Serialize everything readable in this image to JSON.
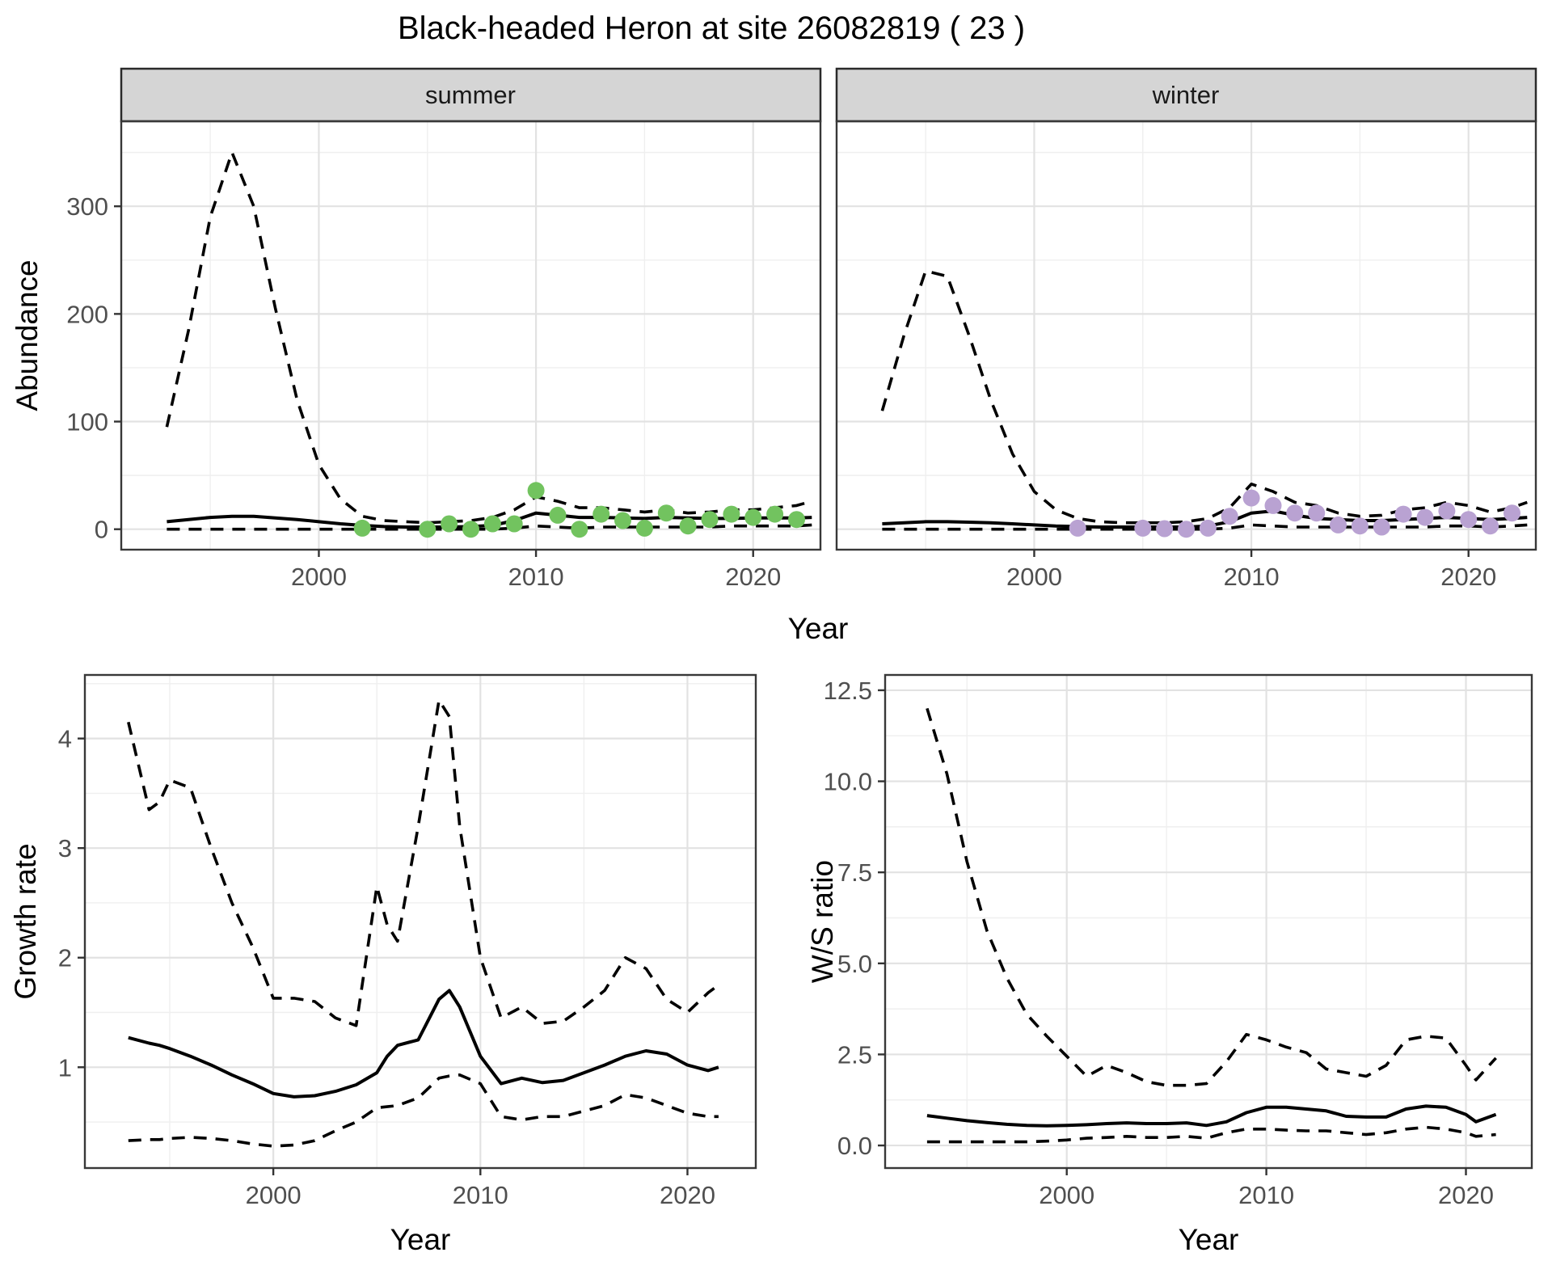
{
  "title": "Black-headed Heron at site 26082819 ( 23 )",
  "top_xlabel": "Year",
  "colors": {
    "summer_point": "#72c35f",
    "winter_point": "#b9a2d2",
    "line": "#000000",
    "strip_fill": "#d5d5d5",
    "panel_border": "#383838",
    "grid_major": "#e2e2e2",
    "grid_minor": "#efefef",
    "tick_text": "#4f4f4f"
  },
  "chart_data": [
    {
      "id": "summer",
      "type": "line",
      "facet_label": "summer",
      "ylabel": "Abundance",
      "xlim": [
        1990.9,
        2023.1
      ],
      "ylim": [
        -19,
        379
      ],
      "xticks": [
        2000,
        2010,
        2020
      ],
      "xtick_labels": [
        "2000",
        "2010",
        "2020"
      ],
      "xminor": [
        1995,
        2005,
        2015
      ],
      "yticks": [
        0,
        100,
        200,
        300
      ],
      "ytick_labels": [
        "0",
        "100",
        "200",
        "300"
      ],
      "yminor": [
        50,
        150,
        250,
        350
      ],
      "series": [
        {
          "name": "upper-ci",
          "style": "dashed",
          "x": [
            1993,
            1994,
            1995,
            1996,
            1997,
            1998,
            1999,
            2000,
            2001,
            2002,
            2003,
            2004,
            2005,
            2006,
            2007,
            2008,
            2009,
            2010,
            2011,
            2012,
            2013,
            2014,
            2015,
            2016,
            2017,
            2018,
            2019,
            2020,
            2021,
            2022,
            2022.7
          ],
          "y": [
            95,
            185,
            290,
            350,
            300,
            205,
            120,
            60,
            28,
            12,
            8,
            7,
            6,
            7,
            8,
            11,
            18,
            30,
            26,
            20,
            20,
            18,
            16,
            18,
            15,
            16,
            18,
            18,
            20,
            22,
            26
          ]
        },
        {
          "name": "lower-ci",
          "style": "dashed",
          "x": [
            1993,
            1994,
            1995,
            1996,
            1997,
            1998,
            1999,
            2000,
            2001,
            2002,
            2003,
            2004,
            2005,
            2006,
            2007,
            2008,
            2009,
            2010,
            2011,
            2012,
            2013,
            2014,
            2015,
            2016,
            2017,
            2018,
            2019,
            2020,
            2021,
            2022,
            2022.7
          ],
          "y": [
            0,
            0,
            0,
            0,
            0,
            0,
            0,
            0,
            0,
            0,
            0,
            0,
            0,
            0,
            0,
            0,
            1,
            3,
            2,
            1,
            2,
            2,
            2,
            2,
            2,
            2,
            3,
            3,
            3,
            3,
            4
          ]
        },
        {
          "name": "fit",
          "style": "solid",
          "x": [
            1993,
            1994,
            1995,
            1996,
            1997,
            1998,
            1999,
            2000,
            2001,
            2002,
            2003,
            2004,
            2005,
            2006,
            2007,
            2008,
            2009,
            2010,
            2011,
            2012,
            2013,
            2014,
            2015,
            2016,
            2017,
            2018,
            2019,
            2020,
            2021,
            2022,
            2022.7
          ],
          "y": [
            7,
            9,
            11,
            12,
            12,
            10.5,
            9,
            7,
            5,
            3.5,
            2.5,
            2,
            2,
            2,
            2.5,
            3.5,
            8,
            15,
            13,
            11,
            11,
            10.5,
            10,
            11,
            10.5,
            10,
            10,
            10.5,
            10.5,
            10.5,
            11
          ]
        }
      ],
      "points": {
        "name": "summer-observations",
        "color": "#72c35f",
        "x": [
          2002,
          2005,
          2006,
          2007,
          2008,
          2009,
          2010,
          2011,
          2012,
          2013,
          2014,
          2015,
          2016,
          2017,
          2018,
          2019,
          2020,
          2021,
          2022
        ],
        "y": [
          1,
          0,
          5,
          0,
          5,
          5,
          36,
          13,
          0,
          14,
          8,
          1,
          15,
          3,
          9,
          14,
          11,
          14,
          9
        ]
      }
    },
    {
      "id": "winter",
      "type": "line",
      "facet_label": "winter",
      "ylabel": null,
      "xlim": [
        1990.9,
        2023.1
      ],
      "ylim": [
        -19,
        379
      ],
      "xticks": [
        2000,
        2010,
        2020
      ],
      "xtick_labels": [
        "2000",
        "2010",
        "2020"
      ],
      "xminor": [
        1995,
        2005,
        2015
      ],
      "yticks": [
        0,
        100,
        200,
        300
      ],
      "ytick_labels": [],
      "yminor": [
        50,
        150,
        250,
        350
      ],
      "series": [
        {
          "name": "upper-ci",
          "style": "dashed",
          "x": [
            1993,
            1994,
            1995,
            1996,
            1997,
            1998,
            1999,
            2000,
            2001,
            2002,
            2003,
            2004,
            2005,
            2006,
            2007,
            2008,
            2009,
            2010,
            2011,
            2012,
            2013,
            2014,
            2015,
            2016,
            2017,
            2018,
            2019,
            2020,
            2021,
            2022,
            2022.7
          ],
          "y": [
            110,
            180,
            240,
            235,
            180,
            120,
            70,
            35,
            18,
            10,
            7,
            6,
            6,
            6,
            7,
            10,
            20,
            42,
            35,
            25,
            22,
            15,
            12,
            13,
            18,
            20,
            25,
            22,
            16,
            20,
            25
          ]
        },
        {
          "name": "lower-ci",
          "style": "dashed",
          "x": [
            1993,
            1994,
            1995,
            1996,
            1997,
            1998,
            1999,
            2000,
            2001,
            2002,
            2003,
            2004,
            2005,
            2006,
            2007,
            2008,
            2009,
            2010,
            2011,
            2012,
            2013,
            2014,
            2015,
            2016,
            2017,
            2018,
            2019,
            2020,
            2021,
            2022,
            2022.7
          ],
          "y": [
            0,
            0,
            0,
            0,
            0,
            0,
            0,
            0,
            0,
            0,
            0,
            0,
            0,
            0,
            0,
            0,
            1,
            4,
            3,
            2,
            2,
            2,
            2,
            2,
            2,
            2,
            3,
            3,
            2,
            3,
            4
          ]
        },
        {
          "name": "fit",
          "style": "solid",
          "x": [
            1993,
            1994,
            1995,
            1996,
            1997,
            1998,
            1999,
            2000,
            2001,
            2002,
            2003,
            2004,
            2005,
            2006,
            2007,
            2008,
            2009,
            2010,
            2011,
            2012,
            2013,
            2014,
            2015,
            2016,
            2017,
            2018,
            2019,
            2020,
            2021,
            2022,
            2022.7
          ],
          "y": [
            5,
            6,
            7,
            7,
            6.5,
            6,
            5,
            4,
            3,
            2.5,
            2,
            2,
            2,
            2,
            2,
            3,
            7,
            15,
            17,
            13,
            10,
            9,
            8,
            8,
            9,
            10,
            11,
            10,
            9,
            10,
            11
          ]
        }
      ],
      "points": {
        "name": "winter-observations",
        "color": "#b9a2d2",
        "x": [
          2002,
          2005,
          2006,
          2007,
          2008,
          2009,
          2010,
          2011,
          2012,
          2013,
          2014,
          2015,
          2016,
          2017,
          2018,
          2019,
          2020,
          2021,
          2022
        ],
        "y": [
          1,
          1,
          0.5,
          0,
          1,
          12,
          29,
          22,
          15,
          15,
          4,
          3,
          2,
          14,
          11,
          17,
          9,
          3,
          15
        ]
      }
    },
    {
      "id": "growth",
      "type": "line",
      "facet_label": null,
      "ylabel": "Growth rate",
      "xlabel": "Year",
      "xlim": [
        1990.9,
        2023.3
      ],
      "ylim": [
        0.08,
        4.58
      ],
      "xticks": [
        2000,
        2010,
        2020
      ],
      "xtick_labels": [
        "2000",
        "2010",
        "2020"
      ],
      "xminor": [
        1995,
        2005,
        2015
      ],
      "yticks": [
        1,
        2,
        3,
        4
      ],
      "ytick_labels": [
        "1",
        "2",
        "3",
        "4"
      ],
      "yminor": [
        0.5,
        1.5,
        2.5,
        3.5,
        4.5
      ],
      "series": [
        {
          "name": "upper-ci",
          "style": "dashed",
          "x": [
            1993,
            1994,
            1994.5,
            1995,
            1996,
            1997,
            1998,
            1999,
            2000,
            2001,
            2002,
            2003,
            2004,
            2005,
            2005.5,
            2006,
            2007,
            2008,
            2008.5,
            2009,
            2010,
            2011,
            2012,
            2013,
            2014,
            2015,
            2016,
            2017,
            2018,
            2019,
            2020,
            2021,
            2021.5
          ],
          "y": [
            4.15,
            3.35,
            3.42,
            3.62,
            3.55,
            3.0,
            2.5,
            2.1,
            1.63,
            1.63,
            1.6,
            1.45,
            1.38,
            2.65,
            2.3,
            2.15,
            3.2,
            4.35,
            4.2,
            3.2,
            2.0,
            1.45,
            1.55,
            1.4,
            1.42,
            1.55,
            1.7,
            2.0,
            1.9,
            1.62,
            1.5,
            1.68,
            1.75
          ]
        },
        {
          "name": "lower-ci",
          "style": "dashed",
          "x": [
            1993,
            1994,
            1994.5,
            1995,
            1996,
            1997,
            1998,
            1999,
            2000,
            2001,
            2002,
            2003,
            2004,
            2005,
            2005.5,
            2006,
            2007,
            2008,
            2008.5,
            2009,
            2010,
            2011,
            2012,
            2013,
            2014,
            2015,
            2016,
            2017,
            2018,
            2019,
            2020,
            2021,
            2021.5
          ],
          "y": [
            0.33,
            0.34,
            0.34,
            0.35,
            0.36,
            0.35,
            0.33,
            0.3,
            0.28,
            0.29,
            0.33,
            0.42,
            0.5,
            0.63,
            0.64,
            0.65,
            0.72,
            0.9,
            0.92,
            0.93,
            0.85,
            0.55,
            0.52,
            0.55,
            0.55,
            0.6,
            0.65,
            0.75,
            0.72,
            0.65,
            0.58,
            0.55,
            0.55
          ]
        },
        {
          "name": "fit",
          "style": "solid",
          "x": [
            1993,
            1994,
            1994.5,
            1995,
            1996,
            1997,
            1998,
            1999,
            2000,
            2001,
            2002,
            2003,
            2004,
            2005,
            2005.5,
            2006,
            2007,
            2008,
            2008.5,
            2009,
            2010,
            2011,
            2012,
            2013,
            2014,
            2015,
            2016,
            2017,
            2018,
            2019,
            2020,
            2021,
            2021.5
          ],
          "y": [
            1.27,
            1.22,
            1.2,
            1.17,
            1.1,
            1.02,
            0.93,
            0.85,
            0.76,
            0.73,
            0.74,
            0.78,
            0.84,
            0.95,
            1.1,
            1.2,
            1.25,
            1.62,
            1.7,
            1.55,
            1.1,
            0.85,
            0.9,
            0.86,
            0.88,
            0.95,
            1.02,
            1.1,
            1.15,
            1.12,
            1.02,
            0.97,
            1.0
          ]
        }
      ],
      "points": null
    },
    {
      "id": "ws",
      "type": "line",
      "facet_label": null,
      "ylabel": "W/S ratio",
      "xlabel": "Year",
      "xlim": [
        1990.9,
        2023.3
      ],
      "ylim": [
        -0.62,
        12.92
      ],
      "xticks": [
        2000,
        2010,
        2020
      ],
      "xtick_labels": [
        "2000",
        "2010",
        "2020"
      ],
      "xminor": [
        1995,
        2005,
        2015
      ],
      "yticks": [
        0,
        2.5,
        5,
        7.5,
        10,
        12.5
      ],
      "ytick_labels": [
        "0.0",
        "2.5",
        "5.0",
        "7.5",
        "10.0",
        "12.5"
      ],
      "yminor": [
        1.25,
        3.75,
        6.25,
        8.75,
        11.25
      ],
      "series": [
        {
          "name": "upper-ci",
          "style": "dashed",
          "x": [
            1993,
            1994,
            1995,
            1996,
            1997,
            1998,
            1999,
            2000,
            2001,
            2002,
            2003,
            2004,
            2005,
            2006,
            2007,
            2008,
            2009,
            2010,
            2011,
            2012,
            2013,
            2014,
            2015,
            2016,
            2017,
            2018,
            2019,
            2020,
            2020.5,
            2021.5
          ],
          "y": [
            12.0,
            10.2,
            7.8,
            5.9,
            4.6,
            3.6,
            3.0,
            2.45,
            1.9,
            2.2,
            2.0,
            1.75,
            1.65,
            1.65,
            1.7,
            2.3,
            3.05,
            2.9,
            2.7,
            2.55,
            2.1,
            2.0,
            1.9,
            2.2,
            2.9,
            3.0,
            2.95,
            2.2,
            1.8,
            2.4
          ]
        },
        {
          "name": "lower-ci",
          "style": "dashed",
          "x": [
            1993,
            1994,
            1995,
            1996,
            1997,
            1998,
            1999,
            2000,
            2001,
            2002,
            2003,
            2004,
            2005,
            2006,
            2007,
            2008,
            2009,
            2010,
            2011,
            2012,
            2013,
            2014,
            2015,
            2016,
            2017,
            2018,
            2019,
            2020,
            2020.5,
            2021.5
          ],
          "y": [
            0.1,
            0.1,
            0.1,
            0.1,
            0.1,
            0.1,
            0.12,
            0.15,
            0.2,
            0.22,
            0.25,
            0.22,
            0.22,
            0.25,
            0.2,
            0.35,
            0.45,
            0.45,
            0.42,
            0.4,
            0.4,
            0.35,
            0.3,
            0.35,
            0.45,
            0.5,
            0.45,
            0.35,
            0.25,
            0.3
          ]
        },
        {
          "name": "fit",
          "style": "solid",
          "x": [
            1993,
            1994,
            1995,
            1996,
            1997,
            1998,
            1999,
            2000,
            2001,
            2002,
            2003,
            2004,
            2005,
            2006,
            2007,
            2008,
            2009,
            2010,
            2011,
            2012,
            2013,
            2014,
            2015,
            2016,
            2017,
            2018,
            2019,
            2020,
            2020.5,
            2021.5
          ],
          "y": [
            0.82,
            0.75,
            0.68,
            0.63,
            0.58,
            0.55,
            0.54,
            0.55,
            0.57,
            0.6,
            0.62,
            0.6,
            0.6,
            0.62,
            0.55,
            0.65,
            0.9,
            1.05,
            1.05,
            1.0,
            0.95,
            0.8,
            0.78,
            0.78,
            1.0,
            1.08,
            1.05,
            0.85,
            0.65,
            0.85
          ]
        }
      ],
      "points": null
    }
  ]
}
